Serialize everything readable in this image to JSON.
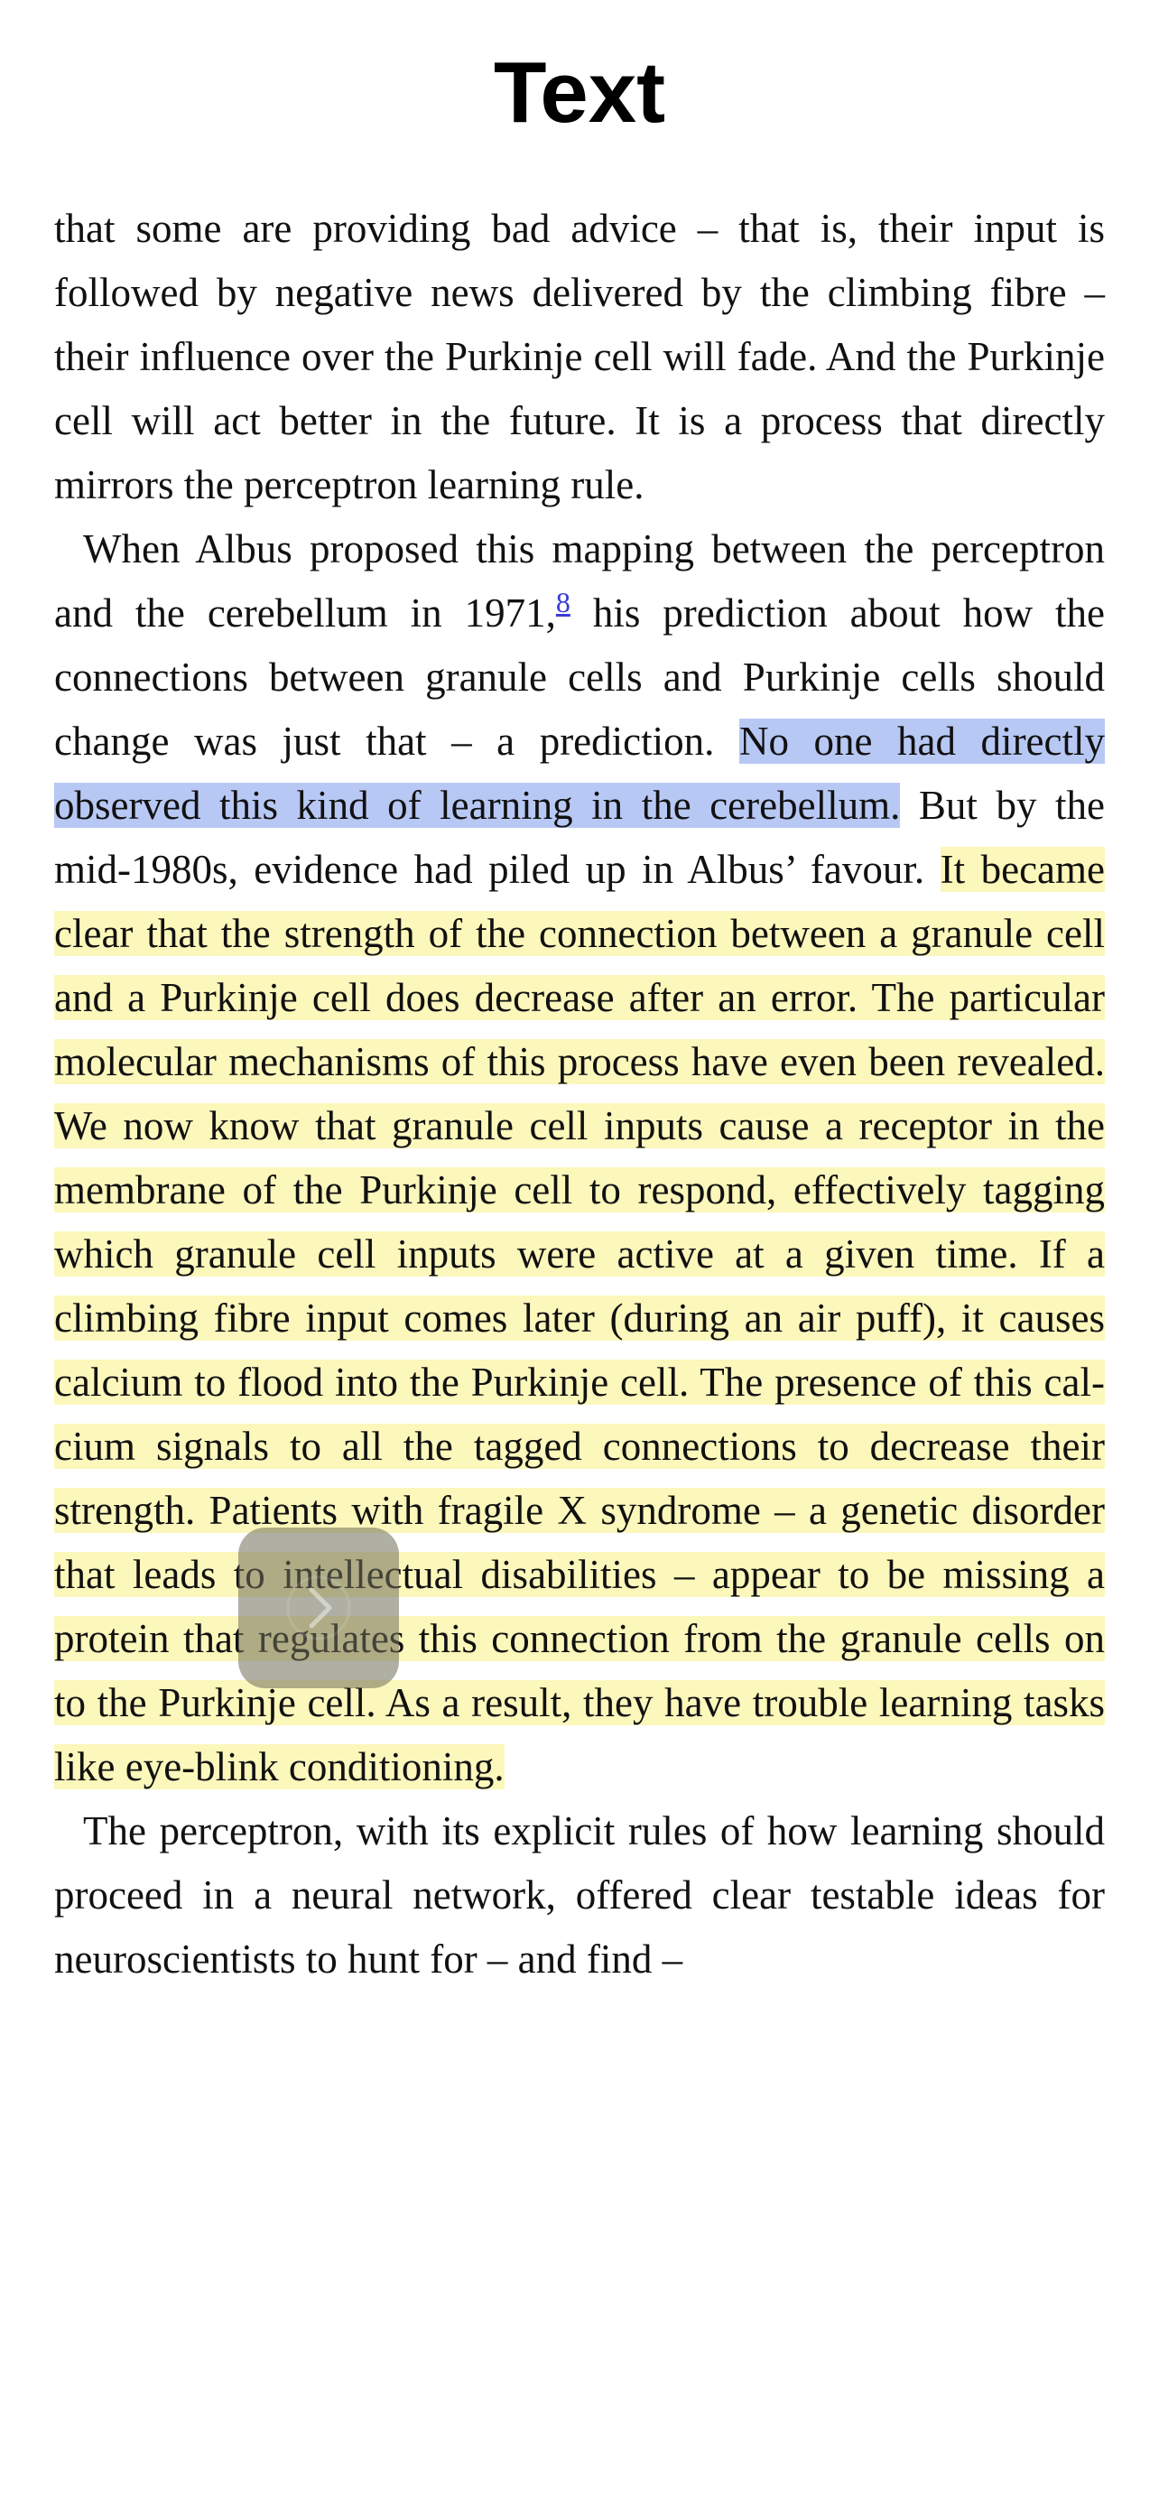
{
  "header": {
    "title": "Text"
  },
  "content": {
    "p1": "that some are providing bad advice – that is, their input is followed by negative news delivered by the climbing fibre – their influence over the Purkinje cell will fade. And the Purkinje cell will act better in the future. It is a process that directly mirrors the perceptron learning rule.",
    "p2_before_ref": "When Albus proposed this mapping between the per­ceptron and the cerebellum in 1971,",
    "footnote_ref": "8",
    "p2_after_ref": " his prediction about how the connections between granule cells and Purkinje cells should change was just that – a predic­tion. ",
    "p2_blue_highlight": "No one had directly observed this kind of learning in the cerebellum.",
    "p2_middle": " But by the mid-1980s, evidence had piled up in Albus’ favour. ",
    "p2_yellow_highlight": "It became clear that the strength of the connection between a granule cell and a Purkinje cell does decrease after an error. The par­ticular molecular mechanisms of this process have even been revealed. We now know that granule cell inputs cause a receptor in the membrane of the Purkinje cell to respond, effectively tagging which granule cell inputs were active at a given time. If a climbing fibre input comes later (during an air puff), it causes calcium to flood into the Purkinje cell. The presence of this cal­cium signals to all the tagged connections to decrease their strength. Patients with fragile X syndrome – a genetic disorder that leads to intellectual disabilities – appear to be missing a protein that regulates this con­nection from the granule cells on to the Purkinje cell. As a result, they have trouble learning tasks like eye-blink conditioning.",
    "p3": "The perceptron, with its explicit rules of how learning should proceed in a neural network, offered clear test­able ideas for neuroscientists to hunt for – and find –"
  },
  "colors": {
    "blue_highlight": "#b8c8f4",
    "yellow_highlight": "#fcf7bb",
    "link": "#3a3ad8"
  },
  "icons": {
    "page_turn": "chevron-right-icon"
  }
}
